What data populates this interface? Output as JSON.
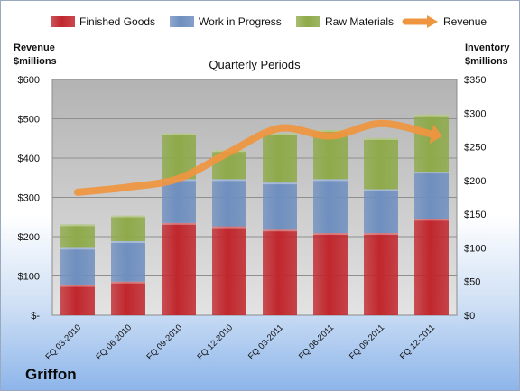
{
  "chart_data": {
    "type": "bar",
    "stacked": true,
    "categories": [
      "FQ 03-2010",
      "FQ 06-2010",
      "FQ 09-2010",
      "FQ 12-2010",
      "FQ 03-2011",
      "FQ 06-2011",
      "FQ 09-2011",
      "FQ 12-2011"
    ],
    "series": [
      {
        "name": "Finished Goods",
        "axis": "right",
        "color": "#c0272d",
        "values": [
          45,
          50,
          137,
          132,
          127,
          122,
          122,
          143
        ]
      },
      {
        "name": "Work in Progress",
        "axis": "right",
        "color": "#6f8fbf",
        "values": [
          55,
          60,
          65,
          70,
          70,
          80,
          65,
          70
        ]
      },
      {
        "name": "Raw Materials",
        "axis": "right",
        "color": "#8eaa4a",
        "values": [
          35,
          38,
          68,
          43,
          73,
          73,
          76,
          85
        ]
      },
      {
        "name": "Revenue",
        "type": "line",
        "axis": "left",
        "color": "#f0953f",
        "values": [
          313,
          326,
          348,
          415,
          476,
          456,
          488,
          461
        ]
      }
    ],
    "title": "Quarterly Periods",
    "ylabel_left": [
      "Revenue",
      "$millions"
    ],
    "ylabel_right": [
      "Inventory",
      "$millions"
    ],
    "ylim_left": [
      0,
      600
    ],
    "ylim_right": [
      0,
      350
    ],
    "yticks_left": [
      "$-",
      "$100",
      "$200",
      "$300",
      "$400",
      "$500",
      "$600"
    ],
    "yticks_right": [
      "$0",
      "$50",
      "$100",
      "$150",
      "$200",
      "$250",
      "$300",
      "$350"
    ],
    "grid": true,
    "legend_position": "top"
  },
  "brand": "Griffon"
}
